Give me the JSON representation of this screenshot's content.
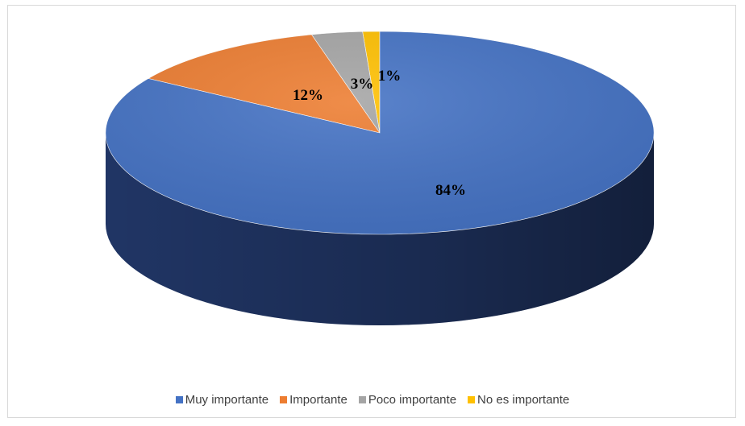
{
  "chart_data": {
    "type": "pie",
    "title": "",
    "categories": [
      "Muy importante",
      "Importante",
      "Poco importante",
      "No es importante"
    ],
    "values": [
      84,
      12,
      3,
      1
    ],
    "labels": [
      "84%",
      "12%",
      "3%",
      "1%"
    ],
    "colors": [
      "#4472C4",
      "#ED7D31",
      "#A5A5A5",
      "#FFC000"
    ],
    "side_colors": [
      "#22386a",
      "#9a4f1d",
      "#6b6b6b",
      "#a67c00"
    ],
    "legend_position": "bottom",
    "style": "3d"
  }
}
